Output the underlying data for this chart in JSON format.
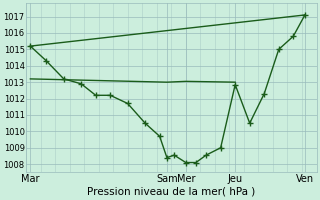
{
  "xlabel": "Pression niveau de la mer( hPa )",
  "bg_color": "#cceedd",
  "grid_color": "#99bbbb",
  "line_color": "#1a5c1a",
  "ylim": [
    1007.5,
    1017.8
  ],
  "ytick_values": [
    1008,
    1009,
    1010,
    1011,
    1012,
    1013,
    1014,
    1015,
    1016,
    1017
  ],
  "xlim": [
    0,
    10.0
  ],
  "xtick_labels": [
    "Mar",
    "Sam",
    "Mer",
    "Jeu",
    "Ven"
  ],
  "xtick_positions": [
    0.15,
    4.85,
    5.5,
    7.2,
    9.6
  ],
  "vline_positions": [
    0.15,
    4.85,
    5.5,
    7.2,
    9.6
  ],
  "line1_x": [
    0.15,
    0.7,
    1.3,
    1.9,
    2.4,
    2.9,
    3.5,
    4.1,
    4.6,
    4.85,
    5.1,
    5.5,
    5.85,
    6.2,
    6.7,
    7.2,
    7.7,
    8.2,
    8.7,
    9.2,
    9.6
  ],
  "line1_y": [
    1015.2,
    1014.3,
    1013.2,
    1012.9,
    1012.2,
    1012.2,
    1011.7,
    1010.5,
    1009.7,
    1008.4,
    1008.55,
    1008.1,
    1008.1,
    1008.55,
    1009.0,
    1012.85,
    1010.5,
    1012.3,
    1015.0,
    1015.8,
    1017.1
  ],
  "line2_x": [
    0.15,
    9.6
  ],
  "line2_y": [
    1015.2,
    1017.1
  ],
  "line3_x": [
    0.15,
    4.85,
    5.5,
    7.2
  ],
  "line3_y": [
    1013.2,
    1013.0,
    1013.05,
    1013.0
  ]
}
